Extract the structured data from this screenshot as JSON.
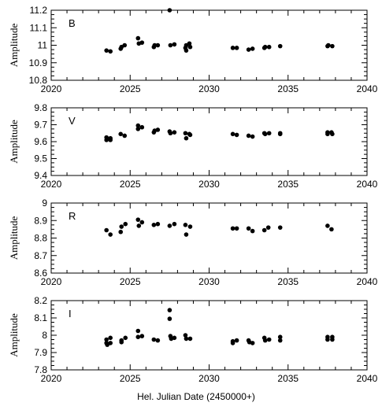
{
  "xlabel": "Hel. Julian Date (2450000+)",
  "chart_data": [
    {
      "type": "scatter",
      "band": "B",
      "ylabel": "Amplitude",
      "xlim": [
        2020,
        2040
      ],
      "ylim": [
        10.8,
        11.2
      ],
      "xticks": [
        "2020",
        "2025",
        "2030",
        "2035",
        "2040"
      ],
      "yticks": [
        "10.8",
        "10.9",
        "11",
        "11.1",
        "11.2"
      ],
      "points": [
        {
          "x": 2023.5,
          "y": 10.97
        },
        {
          "x": 2023.75,
          "y": 10.965
        },
        {
          "x": 2024.4,
          "y": 10.98
        },
        {
          "x": 2024.45,
          "y": 10.99
        },
        {
          "x": 2024.65,
          "y": 11.0
        },
        {
          "x": 2025.5,
          "y": 11.04
        },
        {
          "x": 2025.55,
          "y": 11.01
        },
        {
          "x": 2025.75,
          "y": 11.015
        },
        {
          "x": 2026.5,
          "y": 10.99
        },
        {
          "x": 2026.55,
          "y": 11.0
        },
        {
          "x": 2026.75,
          "y": 11.0
        },
        {
          "x": 2027.5,
          "y": 11.2
        },
        {
          "x": 2027.55,
          "y": 11.0
        },
        {
          "x": 2027.8,
          "y": 11.005
        },
        {
          "x": 2028.5,
          "y": 10.985
        },
        {
          "x": 2028.55,
          "y": 10.97
        },
        {
          "x": 2028.55,
          "y": 11.0
        },
        {
          "x": 2028.75,
          "y": 11.01
        },
        {
          "x": 2028.8,
          "y": 10.99
        },
        {
          "x": 2031.5,
          "y": 10.985
        },
        {
          "x": 2031.75,
          "y": 10.985
        },
        {
          "x": 2032.5,
          "y": 10.975
        },
        {
          "x": 2032.75,
          "y": 10.98
        },
        {
          "x": 2033.5,
          "y": 10.985
        },
        {
          "x": 2033.55,
          "y": 10.99
        },
        {
          "x": 2033.8,
          "y": 10.99
        },
        {
          "x": 2034.5,
          "y": 10.995
        },
        {
          "x": 2037.5,
          "y": 10.995
        },
        {
          "x": 2037.55,
          "y": 11.0
        },
        {
          "x": 2037.8,
          "y": 10.995
        }
      ]
    },
    {
      "type": "scatter",
      "band": "V",
      "ylabel": "Amplitude",
      "xlim": [
        2020,
        2040
      ],
      "ylim": [
        9.4,
        9.8
      ],
      "xticks": [
        "2020",
        "2025",
        "2030",
        "2035",
        "2040"
      ],
      "yticks": [
        "9.4",
        "9.5",
        "9.6",
        "9.7",
        "9.8"
      ],
      "points": [
        {
          "x": 2023.5,
          "y": 9.625
        },
        {
          "x": 2023.5,
          "y": 9.61
        },
        {
          "x": 2023.75,
          "y": 9.62
        },
        {
          "x": 2023.75,
          "y": 9.61
        },
        {
          "x": 2024.4,
          "y": 9.645
        },
        {
          "x": 2024.65,
          "y": 9.635
        },
        {
          "x": 2025.5,
          "y": 9.695
        },
        {
          "x": 2025.5,
          "y": 9.675
        },
        {
          "x": 2025.75,
          "y": 9.685
        },
        {
          "x": 2026.5,
          "y": 9.655
        },
        {
          "x": 2026.55,
          "y": 9.665
        },
        {
          "x": 2026.75,
          "y": 9.67
        },
        {
          "x": 2027.5,
          "y": 9.66
        },
        {
          "x": 2027.55,
          "y": 9.65
        },
        {
          "x": 2027.8,
          "y": 9.655
        },
        {
          "x": 2028.5,
          "y": 9.65
        },
        {
          "x": 2028.55,
          "y": 9.62
        },
        {
          "x": 2028.75,
          "y": 9.645
        },
        {
          "x": 2028.8,
          "y": 9.64
        },
        {
          "x": 2031.5,
          "y": 9.645
        },
        {
          "x": 2031.75,
          "y": 9.64
        },
        {
          "x": 2032.5,
          "y": 9.635
        },
        {
          "x": 2032.75,
          "y": 9.63
        },
        {
          "x": 2033.5,
          "y": 9.65
        },
        {
          "x": 2033.55,
          "y": 9.645
        },
        {
          "x": 2033.8,
          "y": 9.65
        },
        {
          "x": 2034.5,
          "y": 9.65
        },
        {
          "x": 2034.5,
          "y": 9.645
        },
        {
          "x": 2037.5,
          "y": 9.655
        },
        {
          "x": 2037.5,
          "y": 9.645
        },
        {
          "x": 2037.75,
          "y": 9.655
        },
        {
          "x": 2037.8,
          "y": 9.645
        }
      ]
    },
    {
      "type": "scatter",
      "band": "R",
      "ylabel": "Amplitude",
      "xlim": [
        2020,
        2040
      ],
      "ylim": [
        8.6,
        9.0
      ],
      "xticks": [
        "2020",
        "2025",
        "2030",
        "2035",
        "2040"
      ],
      "yticks": [
        "8.6",
        "8.7",
        "8.8",
        "8.9",
        "9"
      ],
      "points": [
        {
          "x": 2023.5,
          "y": 8.845
        },
        {
          "x": 2023.75,
          "y": 8.82
        },
        {
          "x": 2024.4,
          "y": 8.835
        },
        {
          "x": 2024.45,
          "y": 8.865
        },
        {
          "x": 2024.7,
          "y": 8.88
        },
        {
          "x": 2025.5,
          "y": 8.905
        },
        {
          "x": 2025.55,
          "y": 8.87
        },
        {
          "x": 2025.75,
          "y": 8.89
        },
        {
          "x": 2026.5,
          "y": 8.875
        },
        {
          "x": 2026.75,
          "y": 8.88
        },
        {
          "x": 2027.5,
          "y": 8.87
        },
        {
          "x": 2027.8,
          "y": 8.88
        },
        {
          "x": 2028.5,
          "y": 8.875
        },
        {
          "x": 2028.55,
          "y": 8.82
        },
        {
          "x": 2028.8,
          "y": 8.865
        },
        {
          "x": 2031.5,
          "y": 8.855
        },
        {
          "x": 2031.75,
          "y": 8.855
        },
        {
          "x": 2032.5,
          "y": 8.855
        },
        {
          "x": 2032.75,
          "y": 8.84
        },
        {
          "x": 2033.5,
          "y": 8.845
        },
        {
          "x": 2033.75,
          "y": 8.86
        },
        {
          "x": 2034.5,
          "y": 8.86
        },
        {
          "x": 2037.5,
          "y": 8.87
        },
        {
          "x": 2037.75,
          "y": 8.85
        }
      ]
    },
    {
      "type": "scatter",
      "band": "I",
      "ylabel": "Amplitude",
      "xlim": [
        2020,
        2040
      ],
      "ylim": [
        7.8,
        8.2
      ],
      "xticks": [
        "2020",
        "2025",
        "2030",
        "2035",
        "2040"
      ],
      "yticks": [
        "7.8",
        "7.9",
        "8",
        "8.1",
        "8.2"
      ],
      "points": [
        {
          "x": 2023.5,
          "y": 7.975
        },
        {
          "x": 2023.5,
          "y": 7.955
        },
        {
          "x": 2023.55,
          "y": 7.945
        },
        {
          "x": 2023.75,
          "y": 7.985
        },
        {
          "x": 2023.75,
          "y": 7.955
        },
        {
          "x": 2024.45,
          "y": 7.97
        },
        {
          "x": 2024.45,
          "y": 7.96
        },
        {
          "x": 2024.7,
          "y": 7.985
        },
        {
          "x": 2025.5,
          "y": 8.025
        },
        {
          "x": 2025.5,
          "y": 7.99
        },
        {
          "x": 2025.75,
          "y": 7.995
        },
        {
          "x": 2026.5,
          "y": 7.975
        },
        {
          "x": 2026.75,
          "y": 7.97
        },
        {
          "x": 2027.5,
          "y": 8.145
        },
        {
          "x": 2027.5,
          "y": 8.095
        },
        {
          "x": 2027.55,
          "y": 7.995
        },
        {
          "x": 2027.6,
          "y": 7.98
        },
        {
          "x": 2027.8,
          "y": 7.985
        },
        {
          "x": 2028.5,
          "y": 8.0
        },
        {
          "x": 2028.55,
          "y": 7.98
        },
        {
          "x": 2028.8,
          "y": 7.98
        },
        {
          "x": 2031.5,
          "y": 7.965
        },
        {
          "x": 2031.5,
          "y": 7.955
        },
        {
          "x": 2031.75,
          "y": 7.97
        },
        {
          "x": 2032.5,
          "y": 7.97
        },
        {
          "x": 2032.55,
          "y": 7.96
        },
        {
          "x": 2032.75,
          "y": 7.955
        },
        {
          "x": 2033.5,
          "y": 7.985
        },
        {
          "x": 2033.55,
          "y": 7.97
        },
        {
          "x": 2033.8,
          "y": 7.975
        },
        {
          "x": 2034.5,
          "y": 7.99
        },
        {
          "x": 2034.5,
          "y": 7.97
        },
        {
          "x": 2037.5,
          "y": 7.99
        },
        {
          "x": 2037.5,
          "y": 7.975
        },
        {
          "x": 2037.8,
          "y": 7.99
        },
        {
          "x": 2037.8,
          "y": 7.975
        }
      ]
    }
  ]
}
